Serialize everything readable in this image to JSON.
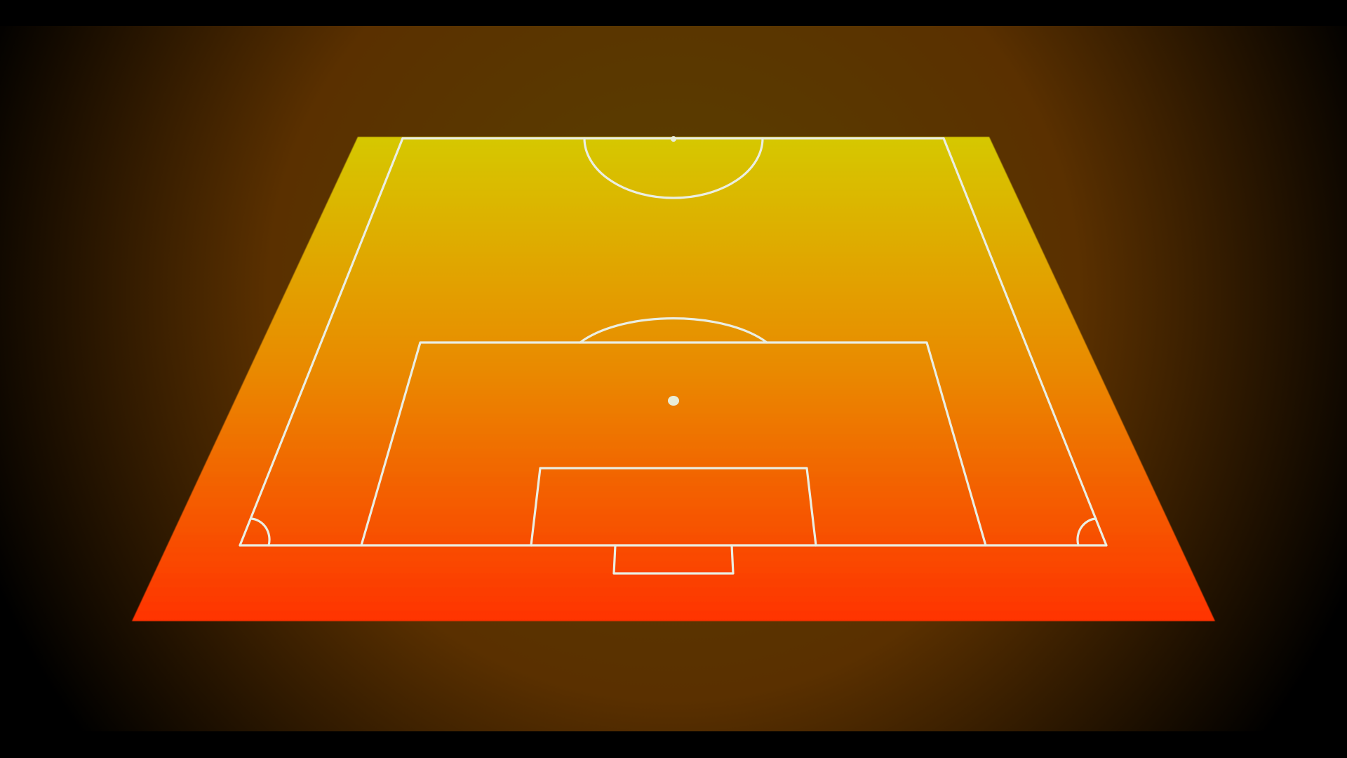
{
  "scene": {
    "name": "half-pitch-perspective-view",
    "colors": {
      "letterbox": "#000000",
      "backdrop_center": "#5a3000",
      "backdrop_glow_top": "#5a4200",
      "backdrop_edge": "#000000",
      "pitch_far": "#d6c800",
      "pitch_mid": "#e98a00",
      "pitch_near": "#ff3300",
      "lines": "#eaeee2",
      "penalty_spot": "#e8ecd8"
    }
  },
  "pitch": {
    "markings": [
      "touchline-left",
      "touchline-right",
      "halfway-line",
      "center-circle-half",
      "penalty-area",
      "penalty-arc",
      "penalty-spot",
      "goal-area",
      "goal",
      "goal-line",
      "corner-arc-left",
      "corner-arc-right"
    ]
  }
}
